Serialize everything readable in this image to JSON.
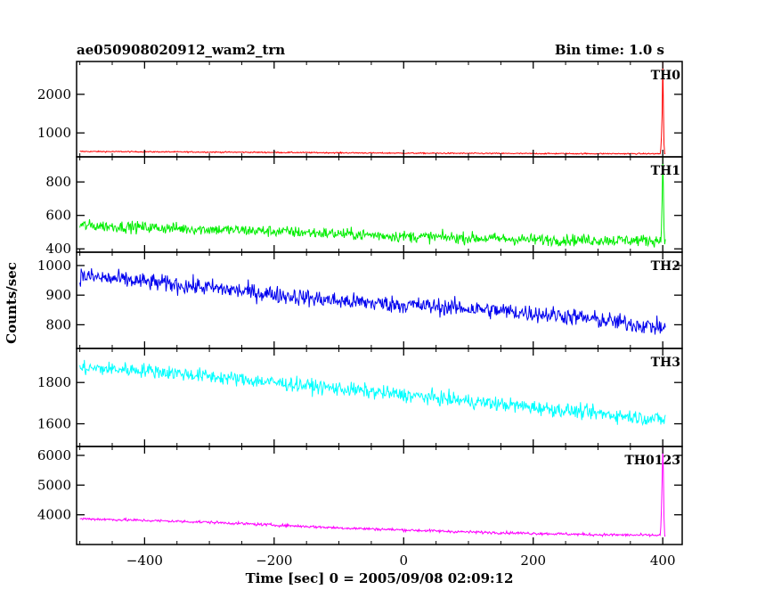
{
  "header": {
    "title": "ae050908020912_wam2_trn",
    "bin_time": "Bin time: 1.0 s"
  },
  "axes": {
    "ylabel": "Counts/sec",
    "xlabel": "Time [sec] 0 = 2005/09/08 02:09:12"
  },
  "chart_data": {
    "type": "line",
    "title": "ae050908020912_wam2_trn",
    "subtitle": "Bin time: 1.0 s",
    "xlabel": "Time [sec] 0 = 2005/09/08 02:09:12",
    "ylabel": "Counts/sec",
    "xlim": [
      -505,
      430
    ],
    "x_ticks": [
      -400,
      -200,
      0,
      200,
      400
    ],
    "x_tick_labels": [
      "−400",
      "−200",
      "0",
      "200",
      "400"
    ],
    "grid": false,
    "series": [
      {
        "name": "TH0",
        "color": "#ff0000",
        "ylim": [
          380,
          2850
        ],
        "y_ticks": [
          1000,
          2000
        ],
        "y_tick_labels": [
          "1000",
          "2000"
        ],
        "x_range": [
          -500,
          404
        ],
        "trend": [
          [
            -500,
            520
          ],
          [
            -200,
            495
          ],
          [
            0,
            475
          ],
          [
            200,
            465
          ],
          [
            390,
            460
          ]
        ],
        "noise": 20,
        "spike": {
          "x": 400,
          "peak": 2900,
          "shoulder": [
            [
              397,
              600
            ],
            [
              398,
              900
            ],
            [
              399,
              1500
            ],
            [
              400,
              2900
            ],
            [
              401,
              1700
            ],
            [
              402,
              700
            ]
          ]
        }
      },
      {
        "name": "TH1",
        "color": "#00ee00",
        "ylim": [
          380,
          950
        ],
        "y_ticks": [
          400,
          600,
          800
        ],
        "y_tick_labels": [
          "400",
          "600",
          "800"
        ],
        "x_range": [
          -500,
          404
        ],
        "trend": [
          [
            -500,
            540
          ],
          [
            -200,
            505
          ],
          [
            0,
            475
          ],
          [
            200,
            455
          ],
          [
            390,
            450
          ]
        ],
        "noise": 45,
        "spike": {
          "x": 400,
          "peak": 950,
          "shoulder": [
            [
              398,
              520
            ],
            [
              399,
              700
            ],
            [
              400,
              950
            ],
            [
              401,
              760
            ],
            [
              402,
              520
            ]
          ]
        }
      },
      {
        "name": "TH2",
        "color": "#0000ee",
        "ylim": [
          720,
          1045
        ],
        "y_ticks": [
          800,
          900,
          1000
        ],
        "y_tick_labels": [
          "800",
          "900",
          "1000"
        ],
        "x_range": [
          -500,
          404
        ],
        "trend": [
          [
            -500,
            965
          ],
          [
            -300,
            925
          ],
          [
            -100,
            880
          ],
          [
            100,
            855
          ],
          [
            250,
            830
          ],
          [
            400,
            790
          ]
        ],
        "noise": 38
      },
      {
        "name": "TH3",
        "color": "#00ffff",
        "ylim": [
          1490,
          1965
        ],
        "y_ticks": [
          1600,
          1800
        ],
        "y_tick_labels": [
          "1600",
          "1800"
        ],
        "x_range": [
          -500,
          404
        ],
        "trend": [
          [
            -500,
            1870
          ],
          [
            -400,
            1860
          ],
          [
            -200,
            1800
          ],
          [
            0,
            1740
          ],
          [
            200,
            1680
          ],
          [
            400,
            1620
          ]
        ],
        "noise": 45
      },
      {
        "name": "TH0123",
        "color": "#ff00ff",
        "ylim": [
          3000,
          6300
        ],
        "y_ticks": [
          4000,
          5000,
          6000
        ],
        "y_tick_labels": [
          "4000",
          "5000",
          "6000"
        ],
        "x_range": [
          -500,
          404
        ],
        "trend": [
          [
            -500,
            3870
          ],
          [
            -300,
            3750
          ],
          [
            -100,
            3560
          ],
          [
            100,
            3420
          ],
          [
            300,
            3330
          ],
          [
            390,
            3310
          ]
        ],
        "noise": 60,
        "spike": {
          "x": 400,
          "peak": 6300,
          "shoulder": [
            [
              397,
              3600
            ],
            [
              398,
              4200
            ],
            [
              399,
              5200
            ],
            [
              400,
              6300
            ],
            [
              401,
              5400
            ],
            [
              402,
              3900
            ]
          ]
        }
      }
    ]
  }
}
